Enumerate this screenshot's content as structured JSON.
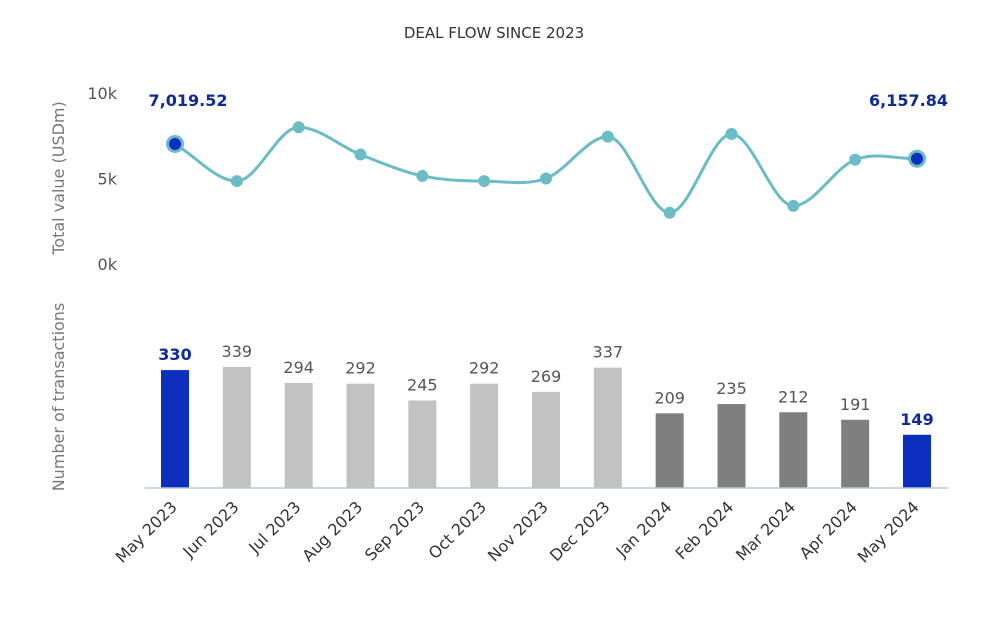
{
  "colors": {
    "line": "#6cbcc5",
    "marker": "#6cbcc5",
    "highlight": "#0c2fbe",
    "bar_2023": "#c2c2c2",
    "bar_2024": "#7f7f7f",
    "baseline": "#b8c8dc"
  },
  "chart_data": {
    "type": "line+bar",
    "title": "DEAL FLOW SINCE 2023",
    "categories": [
      "May 2023",
      "Jun 2023",
      "Jul 2023",
      "Aug 2023",
      "Sep 2023",
      "Oct 2023",
      "Nov 2023",
      "Dec 2023",
      "Jan 2024",
      "Feb 2024",
      "Mar 2024",
      "Apr 2024",
      "May 2024"
    ],
    "line": {
      "ylabel": "Total value (USDm)",
      "ylim": [
        0,
        10000
      ],
      "yticks": [
        "0k",
        "5k",
        "10k"
      ],
      "values": [
        7019.52,
        4850,
        8000,
        6400,
        5150,
        4850,
        5000,
        7450,
        3000,
        7600,
        3400,
        6100,
        6157.84
      ],
      "annotations": [
        {
          "index": 0,
          "text": "7,019.52"
        },
        {
          "index": 12,
          "text": "6,157.84"
        }
      ]
    },
    "bars": {
      "ylabel": "Number of transactions",
      "values": [
        330,
        339,
        294,
        292,
        245,
        292,
        269,
        337,
        209,
        235,
        212,
        191,
        149
      ],
      "labels": [
        "330",
        "339",
        "294",
        "292",
        "245",
        "292",
        "269",
        "337",
        "209",
        "235",
        "212",
        "191",
        "149"
      ],
      "highlight": [
        0,
        12
      ]
    },
    "grid": false,
    "legend": "none"
  }
}
